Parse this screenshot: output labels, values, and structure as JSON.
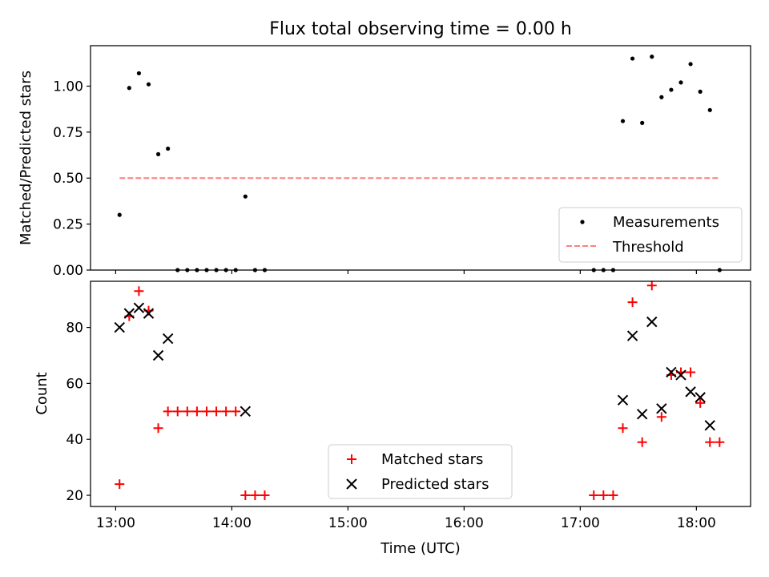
{
  "chart_data": [
    {
      "type": "scatter",
      "title": "Flux total observing time = 0.00 h",
      "xlabel": "",
      "ylabel": "Matched/Predicted stars",
      "ylim": [
        0,
        1.22
      ],
      "xlim": [
        "12:47",
        "18:28"
      ],
      "yticks": [
        "0.00",
        "0.25",
        "0.50",
        "0.75",
        "1.00"
      ],
      "legend_position": "lower-right",
      "series": [
        {
          "name": "Measurements",
          "marker": "dot",
          "color": "#000000",
          "points": [
            [
              "13:02",
              0.3
            ],
            [
              "13:07",
              0.99
            ],
            [
              "13:12",
              1.07
            ],
            [
              "13:17",
              1.01
            ],
            [
              "13:22",
              0.63
            ],
            [
              "13:27",
              0.66
            ],
            [
              "13:32",
              0.0
            ],
            [
              "13:37",
              0.0
            ],
            [
              "13:42",
              0.0
            ],
            [
              "13:47",
              0.0
            ],
            [
              "13:52",
              0.0
            ],
            [
              "13:57",
              0.0
            ],
            [
              "14:02",
              0.0
            ],
            [
              "14:07",
              0.4
            ],
            [
              "14:12",
              0.0
            ],
            [
              "14:17",
              0.0
            ],
            [
              "17:07",
              0.0
            ],
            [
              "17:12",
              0.0
            ],
            [
              "17:17",
              0.0
            ],
            [
              "17:22",
              0.81
            ],
            [
              "17:27",
              1.15
            ],
            [
              "17:32",
              0.8
            ],
            [
              "17:37",
              1.16
            ],
            [
              "17:42",
              0.94
            ],
            [
              "17:47",
              0.98
            ],
            [
              "17:52",
              1.02
            ],
            [
              "17:57",
              1.12
            ],
            [
              "18:02",
              0.97
            ],
            [
              "18:07",
              0.87
            ],
            [
              "18:12",
              0.0
            ]
          ]
        },
        {
          "name": "Threshold",
          "marker": "dashed-line",
          "color": "#ff7f7f",
          "points": [
            [
              "13:02",
              0.5
            ],
            [
              "18:12",
              0.5
            ]
          ]
        }
      ]
    },
    {
      "type": "scatter",
      "title": "",
      "xlabel": "Time (UTC)",
      "ylabel": "Count",
      "ylim": [
        16,
        96.5
      ],
      "xlim": [
        "12:47",
        "18:28"
      ],
      "yticks": [
        "20",
        "40",
        "60",
        "80"
      ],
      "xticks": [
        "13:00",
        "14:00",
        "15:00",
        "16:00",
        "17:00",
        "18:00"
      ],
      "legend_position": "lower-center",
      "series": [
        {
          "name": "Matched stars",
          "marker": "plus",
          "color": "#ff0000",
          "points": [
            [
              "13:02",
              24
            ],
            [
              "13:07",
              84
            ],
            [
              "13:12",
              93
            ],
            [
              "13:17",
              86
            ],
            [
              "13:22",
              44
            ],
            [
              "13:27",
              50
            ],
            [
              "13:32",
              50
            ],
            [
              "13:37",
              50
            ],
            [
              "13:42",
              50
            ],
            [
              "13:47",
              50
            ],
            [
              "13:52",
              50
            ],
            [
              "13:57",
              50
            ],
            [
              "14:02",
              50
            ],
            [
              "14:07",
              20
            ],
            [
              "14:12",
              20
            ],
            [
              "14:17",
              20
            ],
            [
              "17:07",
              20
            ],
            [
              "17:12",
              20
            ],
            [
              "17:17",
              20
            ],
            [
              "17:22",
              44
            ],
            [
              "17:27",
              89
            ],
            [
              "17:32",
              39
            ],
            [
              "17:37",
              95
            ],
            [
              "17:42",
              48
            ],
            [
              "17:47",
              63
            ],
            [
              "17:52",
              64
            ],
            [
              "17:57",
              64
            ],
            [
              "18:02",
              53
            ],
            [
              "18:07",
              39
            ],
            [
              "18:12",
              39
            ]
          ]
        },
        {
          "name": "Predicted stars",
          "marker": "x",
          "color": "#000000",
          "points": [
            [
              "13:02",
              80
            ],
            [
              "13:07",
              85
            ],
            [
              "13:12",
              87
            ],
            [
              "13:17",
              85
            ],
            [
              "13:22",
              70
            ],
            [
              "13:27",
              76
            ],
            [
              "14:07",
              50
            ],
            [
              "17:22",
              54
            ],
            [
              "17:27",
              77
            ],
            [
              "17:32",
              49
            ],
            [
              "17:37",
              82
            ],
            [
              "17:42",
              51
            ],
            [
              "17:47",
              64
            ],
            [
              "17:52",
              63
            ],
            [
              "17:57",
              57
            ],
            [
              "18:02",
              55
            ],
            [
              "18:07",
              45
            ]
          ]
        }
      ]
    }
  ]
}
